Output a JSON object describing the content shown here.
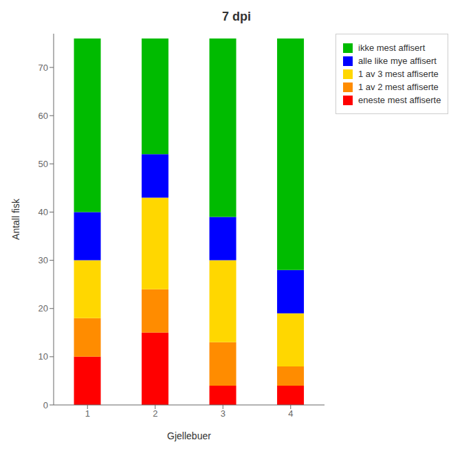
{
  "chart_data": {
    "type": "bar",
    "stacked": true,
    "title": "7 dpi",
    "xlabel": "Gjellebuer",
    "ylabel": "Antall fisk",
    "categories": [
      "1",
      "2",
      "3",
      "4"
    ],
    "series": [
      {
        "name": "eneste mest affiserte",
        "color": "#FF0000",
        "values": [
          10,
          15,
          4,
          4
        ]
      },
      {
        "name": "1 av 2 mest affiserte",
        "color": "#FF8C00",
        "values": [
          8,
          9,
          9,
          4
        ]
      },
      {
        "name": "1 av 3 mest affiserte",
        "color": "#FFD700",
        "values": [
          12,
          19,
          17,
          11
        ]
      },
      {
        "name": "alle like mye affisert",
        "color": "#0000FF",
        "values": [
          10,
          9,
          9,
          9
        ]
      },
      {
        "name": "ikke mest affisert",
        "color": "#00BB00",
        "values": [
          36,
          24,
          37,
          48
        ]
      }
    ],
    "ylim": [
      0,
      77
    ],
    "yticks": [
      0,
      10,
      20,
      30,
      40,
      50,
      60,
      70
    ],
    "grid": false,
    "legend": "upper right"
  }
}
